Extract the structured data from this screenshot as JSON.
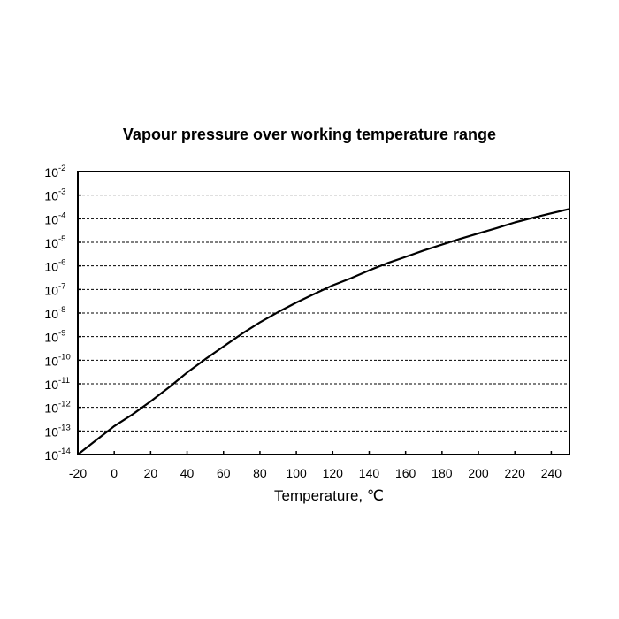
{
  "chart_data": {
    "type": "line",
    "title": "Vapour pressure over working temperature range",
    "xlabel": "Temperature, ℃",
    "ylabel": "",
    "x_scale": "linear",
    "y_scale": "log",
    "xlim": [
      -20,
      250
    ],
    "ylim": [
      1e-14,
      0.01
    ],
    "x_ticks": [
      -20,
      0,
      20,
      40,
      60,
      80,
      100,
      120,
      140,
      160,
      180,
      200,
      220,
      240
    ],
    "y_ticks": [
      {
        "base": "10",
        "exp": "-2",
        "value": 0.01
      },
      {
        "base": "10",
        "exp": "-3",
        "value": 0.001
      },
      {
        "base": "10",
        "exp": "-4",
        "value": 0.0001
      },
      {
        "base": "10",
        "exp": "-5",
        "value": 1e-05
      },
      {
        "base": "10",
        "exp": "-6",
        "value": 1e-06
      },
      {
        "base": "10",
        "exp": "-7",
        "value": 1e-07
      },
      {
        "base": "10",
        "exp": "-8",
        "value": 1e-08
      },
      {
        "base": "10",
        "exp": "-9",
        "value": 1e-09
      },
      {
        "base": "10",
        "exp": "-10",
        "value": 1e-10
      },
      {
        "base": "10",
        "exp": "-11",
        "value": 1e-11
      },
      {
        "base": "10",
        "exp": "-12",
        "value": 1e-12
      },
      {
        "base": "10",
        "exp": "-13",
        "value": 1e-13
      },
      {
        "base": "10",
        "exp": "-14",
        "value": 1e-14
      }
    ],
    "grid": "horizontal dashed",
    "legend": "none",
    "line_color": "#000000",
    "series": [
      {
        "x": [
          -20,
          -10,
          0,
          10,
          20,
          30,
          40,
          50,
          60,
          70,
          80,
          90,
          100,
          110,
          120,
          130,
          140,
          150,
          160,
          170,
          180,
          190,
          200,
          210,
          220,
          230,
          240,
          250
        ],
        "y": [
          1e-14,
          4e-14,
          1.6e-13,
          5e-13,
          1.8e-12,
          7e-12,
          3e-11,
          1.1e-10,
          3.8e-10,
          1.3e-09,
          4e-09,
          1.1e-08,
          2.8e-08,
          6.5e-08,
          1.5e-07,
          3e-07,
          6.5e-07,
          1.3e-06,
          2.4e-06,
          4.5e-06,
          8e-06,
          1.4e-05,
          2.4e-05,
          4e-05,
          7e-05,
          0.00011,
          0.00017,
          0.00026
        ]
      }
    ]
  }
}
